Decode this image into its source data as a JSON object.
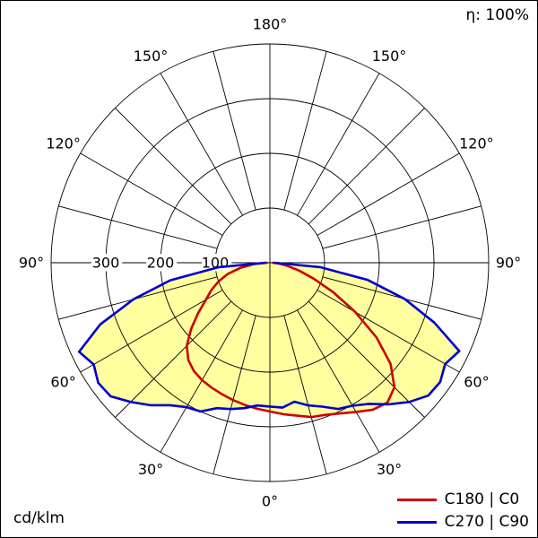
{
  "chart_data": {
    "type": "polar",
    "subtype": "photometric-luminous-intensity-diagram",
    "unit_label": "cd/klm",
    "efficiency_label": "η: 100%",
    "r_axis_max": 400,
    "grid_circle_values": [
      100,
      200,
      300,
      400
    ],
    "radial_tick_labels": [
      {
        "value": 100,
        "label": "100"
      },
      {
        "value": 200,
        "label": "200"
      },
      {
        "value": 300,
        "label": "300"
      }
    ],
    "spoke_step_deg": 15,
    "angle_labels": [
      {
        "a": 0,
        "label": "0°"
      },
      {
        "a": 30,
        "label": "30°"
      },
      {
        "a": -30,
        "label": "30°"
      },
      {
        "a": 60,
        "label": "60°"
      },
      {
        "a": -60,
        "label": "60°"
      },
      {
        "a": 90,
        "label": "90°"
      },
      {
        "a": -90,
        "label": "90°"
      },
      {
        "a": 120,
        "label": "120°"
      },
      {
        "a": -120,
        "label": "120°"
      },
      {
        "a": 150,
        "label": "150°"
      },
      {
        "a": -150,
        "label": "150°"
      },
      {
        "a": 180,
        "label": "180°"
      }
    ],
    "fill_color": "#ffffa0",
    "series": [
      {
        "name": "C180 | C0",
        "color": "#cc0000",
        "points": [
          [
            -90,
            5
          ],
          [
            -85,
            30
          ],
          [
            -80,
            55
          ],
          [
            -75,
            80
          ],
          [
            -70,
            100
          ],
          [
            -65,
            118
          ],
          [
            -60,
            135
          ],
          [
            -55,
            160
          ],
          [
            -50,
            188
          ],
          [
            -45,
            215
          ],
          [
            -40,
            232
          ],
          [
            -35,
            242
          ],
          [
            -30,
            248
          ],
          [
            -25,
            252
          ],
          [
            -20,
            256
          ],
          [
            -15,
            260
          ],
          [
            -10,
            264
          ],
          [
            -5,
            268
          ],
          [
            0,
            272
          ],
          [
            5,
            278
          ],
          [
            10,
            284
          ],
          [
            15,
            292
          ],
          [
            20,
            296
          ],
          [
            25,
            304
          ],
          [
            30,
            315
          ],
          [
            35,
            328
          ],
          [
            40,
            334
          ],
          [
            45,
            322
          ],
          [
            50,
            288
          ],
          [
            55,
            238
          ],
          [
            60,
            180
          ],
          [
            65,
            128
          ],
          [
            70,
            85
          ],
          [
            75,
            55
          ],
          [
            80,
            32
          ],
          [
            85,
            15
          ],
          [
            90,
            5
          ]
        ]
      },
      {
        "name": "C270 | C90",
        "color": "#0000cc",
        "points": [
          [
            -90,
            8
          ],
          [
            -85,
            95
          ],
          [
            -80,
            185
          ],
          [
            -75,
            258
          ],
          [
            -70,
            330
          ],
          [
            -65,
            385
          ],
          [
            -60,
            372
          ],
          [
            -55,
            383
          ],
          [
            -50,
            380
          ],
          [
            -45,
            360
          ],
          [
            -40,
            340
          ],
          [
            -35,
            318
          ],
          [
            -30,
            305
          ],
          [
            -25,
            300
          ],
          [
            -20,
            283
          ],
          [
            -15,
            277
          ],
          [
            -10,
            270
          ],
          [
            -5,
            262
          ],
          [
            0,
            263
          ],
          [
            5,
            266
          ],
          [
            10,
            258
          ],
          [
            15,
            270
          ],
          [
            20,
            280
          ],
          [
            25,
            295
          ],
          [
            30,
            302
          ],
          [
            35,
            315
          ],
          [
            40,
            338
          ],
          [
            45,
            360
          ],
          [
            50,
            378
          ],
          [
            55,
            380
          ],
          [
            60,
            370
          ],
          [
            65,
            382
          ],
          [
            70,
            320
          ],
          [
            75,
            255
          ],
          [
            80,
            182
          ],
          [
            85,
            92
          ],
          [
            90,
            8
          ]
        ]
      }
    ]
  }
}
